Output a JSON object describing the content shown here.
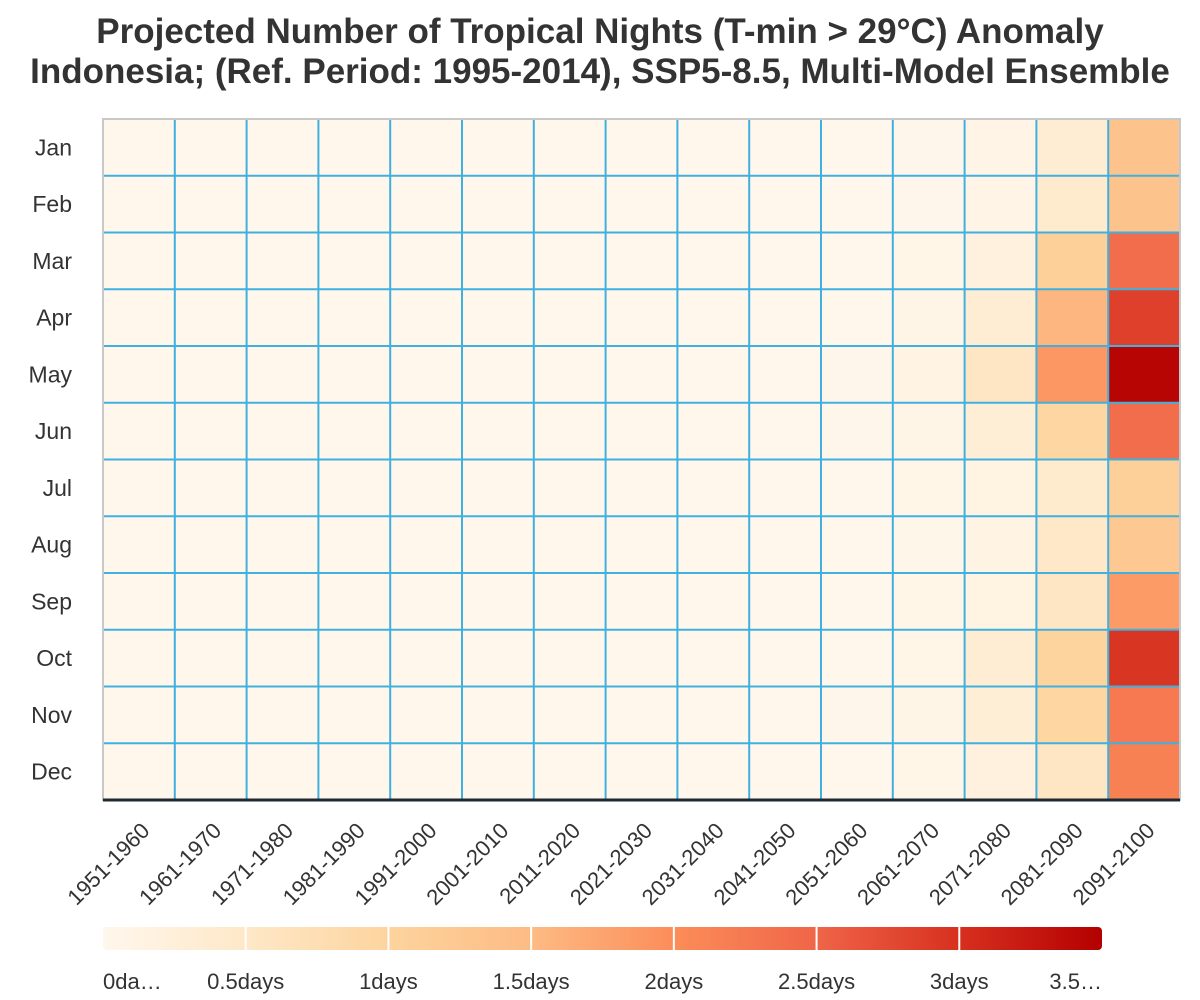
{
  "chart_data": {
    "type": "heatmap",
    "title": "Projected Number of Tropical Nights (T-min > 29°C) Anomaly",
    "subtitle": "Indonesia; (Ref. Period: 1995-2014), SSP5-8.5, Multi-Model Ensemble",
    "y_categories": [
      "Jan",
      "Feb",
      "Mar",
      "Apr",
      "May",
      "Jun",
      "Jul",
      "Aug",
      "Sep",
      "Oct",
      "Nov",
      "Dec"
    ],
    "x_categories": [
      "1951-1960",
      "1961-1970",
      "1971-1980",
      "1981-1990",
      "1991-2000",
      "2001-2010",
      "2011-2020",
      "2021-2030",
      "2031-2040",
      "2041-2050",
      "2051-2060",
      "2061-2070",
      "2071-2080",
      "2081-2090",
      "2091-2100"
    ],
    "values": [
      [
        0,
        0,
        0,
        0,
        0,
        0,
        0,
        0,
        0,
        0,
        0,
        0.02,
        0.1,
        0.35,
        1.35
      ],
      [
        0,
        0,
        0,
        0,
        0,
        0,
        0,
        0,
        0,
        0,
        0,
        0.02,
        0.1,
        0.45,
        1.35
      ],
      [
        0,
        0,
        0,
        0,
        0,
        0,
        0,
        0,
        0,
        0,
        0,
        0.05,
        0.2,
        1.1,
        2.4
      ],
      [
        0,
        0,
        0,
        0,
        0,
        0,
        0,
        0,
        0,
        0,
        0,
        0.07,
        0.35,
        1.55,
        2.85
      ],
      [
        0,
        0,
        0,
        0,
        0,
        0,
        0,
        0,
        0,
        0,
        0.02,
        0.12,
        0.55,
        1.9,
        3.45
      ],
      [
        0,
        0,
        0,
        0,
        0,
        0,
        0,
        0,
        0,
        0,
        0.02,
        0.07,
        0.3,
        0.95,
        2.4
      ],
      [
        0,
        0,
        0,
        0,
        0,
        0,
        0,
        0,
        0,
        0,
        0,
        0.05,
        0.15,
        0.45,
        1.1
      ],
      [
        0,
        0,
        0,
        0,
        0,
        0,
        0,
        0,
        0,
        0,
        0,
        0.03,
        0.12,
        0.5,
        1.25
      ],
      [
        0,
        0,
        0,
        0,
        0,
        0,
        0,
        0,
        0,
        0,
        0,
        0.05,
        0.15,
        0.55,
        1.85
      ],
      [
        0,
        0,
        0,
        0,
        0,
        0,
        0,
        0,
        0,
        0,
        0,
        0.05,
        0.35,
        1.0,
        2.95
      ],
      [
        0,
        0,
        0,
        0,
        0,
        0,
        0,
        0,
        0,
        0,
        0.02,
        0.07,
        0.3,
        0.95,
        2.25
      ],
      [
        0,
        0,
        0,
        0,
        0,
        0,
        0,
        0,
        0,
        0,
        0,
        0.05,
        0.2,
        0.55,
        2.15
      ]
    ],
    "colorbar": {
      "range": [
        0,
        3.5
      ],
      "tick_values": [
        0,
        0.5,
        1,
        1.5,
        2,
        2.5,
        3,
        3.5
      ],
      "tick_labels": [
        "0da…",
        "0.5days",
        "1days",
        "1.5days",
        "2days",
        "2.5days",
        "3days",
        "3.5…"
      ]
    },
    "colors": {
      "scale": [
        "#fff7ec",
        "#fee8c8",
        "#fdd49e",
        "#fdbb84",
        "#fc8d59",
        "#ef6548",
        "#d7301f",
        "#b30000"
      ],
      "grid": "#3fb0e0"
    }
  }
}
